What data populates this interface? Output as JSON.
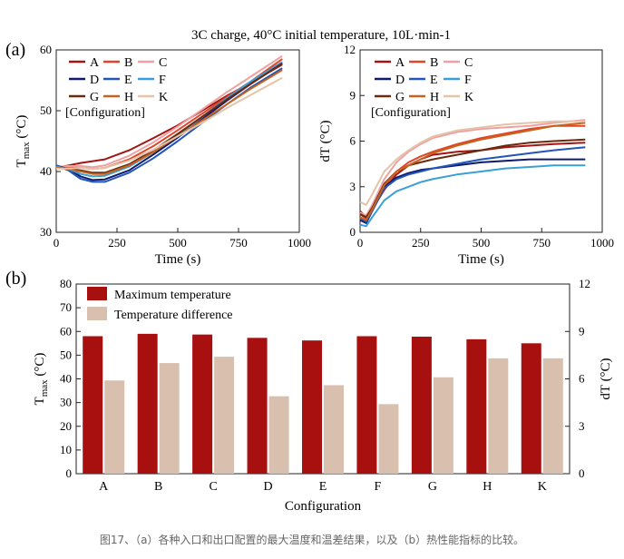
{
  "figure_title": "3C charge, 40°C initial temperature, 10L·min-1",
  "caption": "图17、（a）各种入口和出口配置的最大温度和温差结果，以及（b）热性能指标的比较。",
  "panel_a_label": "(a)",
  "panel_b_label": "(b)",
  "chart_data": [
    {
      "id": "tmax-line",
      "type": "line",
      "xlabel": "Time (s)",
      "ylabel": "Tmax (°C)",
      "xlim": [
        0,
        1000
      ],
      "ylim": [
        30,
        60
      ],
      "xticks": [
        0,
        250,
        500,
        750,
        1000
      ],
      "yticks": [
        30,
        40,
        50,
        60
      ],
      "grid": false,
      "legend_title": "[Configuration]",
      "legend_position": "top-left",
      "series": [
        {
          "name": "A",
          "color": "#a31515",
          "x": [
            0,
            50,
            100,
            150,
            200,
            300,
            400,
            500,
            600,
            700,
            800,
            930
          ],
          "y": [
            40.6,
            41.0,
            41.4,
            41.7,
            42.0,
            43.5,
            45.5,
            47.6,
            50.0,
            52.4,
            54.6,
            57.6
          ]
        },
        {
          "name": "B",
          "color": "#e0452a",
          "x": [
            0,
            50,
            100,
            150,
            200,
            300,
            400,
            500,
            600,
            700,
            800,
            930
          ],
          "y": [
            40.6,
            40.8,
            40.6,
            40.4,
            40.6,
            42.0,
            44.2,
            46.8,
            49.5,
            52.2,
            54.8,
            58.5
          ]
        },
        {
          "name": "C",
          "color": "#f0a0a0",
          "x": [
            0,
            50,
            100,
            150,
            200,
            300,
            400,
            500,
            600,
            700,
            800,
            930
          ],
          "y": [
            40.7,
            40.9,
            40.9,
            40.7,
            41.0,
            42.6,
            44.8,
            47.4,
            50.2,
            53.0,
            55.6,
            59.0
          ]
        },
        {
          "name": "D",
          "color": "#0d1a6e",
          "x": [
            0,
            50,
            100,
            150,
            200,
            300,
            400,
            500,
            600,
            700,
            800,
            930
          ],
          "y": [
            41.0,
            40.4,
            39.2,
            38.6,
            38.7,
            40.2,
            42.8,
            45.6,
            48.6,
            51.6,
            54.4,
            57.8
          ]
        },
        {
          "name": "E",
          "color": "#2155b8",
          "x": [
            0,
            50,
            100,
            150,
            200,
            300,
            400,
            500,
            600,
            700,
            800,
            930
          ],
          "y": [
            41.0,
            40.2,
            38.8,
            38.3,
            38.3,
            39.8,
            42.2,
            45.0,
            48.0,
            51.0,
            53.8,
            57.0
          ]
        },
        {
          "name": "F",
          "color": "#3a9fd6",
          "x": [
            0,
            50,
            100,
            150,
            200,
            300,
            400,
            500,
            600,
            700,
            800,
            930
          ],
          "y": [
            40.8,
            40.4,
            39.6,
            39.2,
            39.3,
            40.8,
            43.2,
            46.0,
            49.0,
            52.0,
            54.8,
            58.0
          ]
        },
        {
          "name": "G",
          "color": "#6b2a0e",
          "x": [
            0,
            50,
            100,
            150,
            200,
            300,
            400,
            500,
            600,
            700,
            800,
            930
          ],
          "y": [
            40.6,
            40.5,
            40.2,
            39.8,
            39.8,
            41.2,
            43.5,
            46.2,
            49.0,
            51.8,
            54.4,
            57.8
          ]
        },
        {
          "name": "H",
          "color": "#c8631e",
          "x": [
            0,
            50,
            100,
            150,
            200,
            300,
            400,
            500,
            600,
            700,
            800,
            930
          ],
          "y": [
            40.6,
            40.4,
            40.0,
            39.6,
            39.6,
            41.0,
            43.2,
            45.8,
            48.4,
            51.0,
            53.6,
            56.7
          ]
        },
        {
          "name": "K",
          "color": "#e3c4a8",
          "x": [
            0,
            50,
            100,
            150,
            200,
            300,
            400,
            500,
            600,
            700,
            800,
            930
          ],
          "y": [
            40.5,
            40.5,
            40.6,
            40.4,
            40.6,
            41.8,
            43.6,
            45.8,
            48.0,
            50.4,
            52.6,
            55.4
          ]
        }
      ]
    },
    {
      "id": "dt-line",
      "type": "line",
      "xlabel": "Time (s)",
      "ylabel": "dT (°C)",
      "xlim": [
        0,
        1000
      ],
      "ylim": [
        0,
        12
      ],
      "xticks": [
        0,
        250,
        500,
        750,
        1000
      ],
      "yticks": [
        0,
        3,
        6,
        9,
        12
      ],
      "grid": false,
      "legend_title": "[Configuration]",
      "legend_position": "top-left",
      "series": [
        {
          "name": "A",
          "color": "#a31515",
          "x": [
            0,
            25,
            50,
            100,
            150,
            200,
            250,
            300,
            400,
            500,
            600,
            700,
            800,
            930
          ],
          "y": [
            1.4,
            1.0,
            1.5,
            2.8,
            3.8,
            4.4,
            4.8,
            5.1,
            5.3,
            5.4,
            5.6,
            5.7,
            5.8,
            5.9
          ]
        },
        {
          "name": "B",
          "color": "#e0452a",
          "x": [
            0,
            25,
            50,
            100,
            150,
            200,
            250,
            300,
            400,
            500,
            600,
            700,
            800,
            930
          ],
          "y": [
            1.2,
            0.9,
            1.5,
            3.0,
            4.0,
            4.6,
            5.0,
            5.3,
            5.8,
            6.2,
            6.5,
            6.8,
            7.0,
            7.0
          ]
        },
        {
          "name": "C",
          "color": "#f0a0a0",
          "x": [
            0,
            25,
            50,
            100,
            150,
            200,
            250,
            300,
            400,
            500,
            600,
            700,
            800,
            930
          ],
          "y": [
            1.3,
            1.1,
            1.8,
            3.5,
            4.6,
            5.3,
            5.8,
            6.2,
            6.6,
            6.8,
            6.9,
            7.0,
            7.2,
            7.4
          ]
        },
        {
          "name": "D",
          "color": "#0d1a6e",
          "x": [
            0,
            25,
            50,
            100,
            150,
            200,
            250,
            300,
            400,
            500,
            600,
            700,
            800,
            930
          ],
          "y": [
            0.8,
            0.6,
            1.4,
            3.0,
            3.6,
            3.9,
            4.1,
            4.2,
            4.4,
            4.6,
            4.7,
            4.8,
            4.8,
            4.8
          ]
        },
        {
          "name": "E",
          "color": "#2155b8",
          "x": [
            0,
            25,
            50,
            100,
            150,
            200,
            250,
            300,
            400,
            500,
            600,
            700,
            800,
            930
          ],
          "y": [
            0.9,
            0.7,
            1.4,
            2.9,
            3.5,
            3.8,
            4.0,
            4.2,
            4.5,
            4.8,
            5.0,
            5.2,
            5.4,
            5.6
          ]
        },
        {
          "name": "F",
          "color": "#3a9fd6",
          "x": [
            0,
            25,
            50,
            100,
            150,
            200,
            250,
            300,
            400,
            500,
            600,
            700,
            800,
            930
          ],
          "y": [
            0.5,
            0.4,
            1.0,
            2.1,
            2.7,
            3.0,
            3.3,
            3.5,
            3.8,
            4.0,
            4.2,
            4.3,
            4.4,
            4.4
          ]
        },
        {
          "name": "G",
          "color": "#6b2a0e",
          "x": [
            0,
            25,
            50,
            100,
            150,
            200,
            250,
            300,
            400,
            500,
            600,
            700,
            800,
            930
          ],
          "y": [
            1.2,
            1.0,
            1.6,
            3.2,
            4.0,
            4.4,
            4.6,
            4.8,
            5.1,
            5.4,
            5.7,
            5.9,
            6.0,
            6.1
          ]
        },
        {
          "name": "H",
          "color": "#c8631e",
          "x": [
            0,
            25,
            50,
            100,
            150,
            200,
            250,
            300,
            400,
            500,
            600,
            700,
            800,
            930
          ],
          "y": [
            1.0,
            0.8,
            1.5,
            3.1,
            4.0,
            4.4,
            4.8,
            5.2,
            5.7,
            6.1,
            6.4,
            6.7,
            7.0,
            7.2
          ]
        },
        {
          "name": "K",
          "color": "#e3c4a8",
          "x": [
            0,
            25,
            50,
            100,
            150,
            200,
            250,
            300,
            400,
            500,
            600,
            700,
            800,
            930
          ],
          "y": [
            2.0,
            1.8,
            2.5,
            4.0,
            4.8,
            5.4,
            5.9,
            6.3,
            6.7,
            6.9,
            7.1,
            7.2,
            7.3,
            7.3
          ]
        }
      ]
    },
    {
      "id": "comparison-bar",
      "type": "bar",
      "xlabel": "Configuration",
      "ylabel": "Tmax (°C)",
      "y2label": "dT (°C)",
      "categories": [
        "A",
        "B",
        "C",
        "D",
        "E",
        "F",
        "G",
        "H",
        "K"
      ],
      "ylim": [
        0,
        80
      ],
      "yticks": [
        0,
        10,
        20,
        30,
        40,
        50,
        60,
        70,
        80
      ],
      "y2lim": [
        0,
        12
      ],
      "y2ticks": [
        0,
        3,
        6,
        9,
        12
      ],
      "grid": false,
      "legend_position": "top-left",
      "series": [
        {
          "name": "Maximum temperature",
          "axis": "left",
          "color": "#a80f0f",
          "values": [
            58.0,
            59.0,
            58.7,
            57.3,
            56.2,
            58.0,
            57.8,
            56.7,
            55.0
          ]
        },
        {
          "name": "Temperature difference",
          "axis": "right",
          "color": "#d9bfae",
          "values": [
            5.9,
            7.0,
            7.4,
            4.9,
            5.6,
            4.4,
            6.1,
            7.3,
            7.3
          ]
        }
      ]
    }
  ]
}
